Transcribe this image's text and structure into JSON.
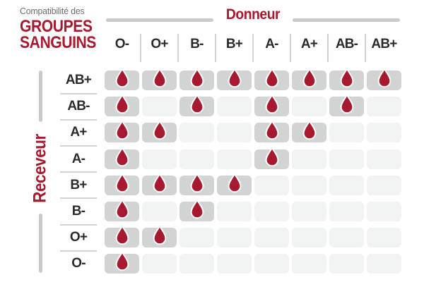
{
  "title": {
    "kicker": "Compatibilité des",
    "line1": "GROUPES",
    "line2": "SANGUINS"
  },
  "axes": {
    "donor_label": "Donneur",
    "receiver_label": "Receveur"
  },
  "colors": {
    "accent_red": "#a6192e",
    "drop_red": "#a6192e",
    "cell_filled": "#d2d4d4",
    "cell_empty": "#f2f3f3",
    "line_gray": "#c9cbcb",
    "header_text": "#2b2b2b",
    "subtitle_gray": "#6e6e6e"
  },
  "chart_data": {
    "type": "heatmap",
    "title": "Compatibilité des groupes sanguins",
    "x_axis_label": "Donneur",
    "y_axis_label": "Receveur",
    "columns": [
      "O-",
      "O+",
      "B-",
      "B+",
      "A-",
      "A+",
      "AB-",
      "AB+"
    ],
    "rows": [
      "AB+",
      "AB-",
      "A+",
      "A-",
      "B+",
      "B-",
      "O+",
      "O-"
    ],
    "matrix": [
      [
        1,
        1,
        1,
        1,
        1,
        1,
        1,
        1
      ],
      [
        1,
        0,
        1,
        0,
        1,
        0,
        1,
        0
      ],
      [
        1,
        1,
        0,
        0,
        1,
        1,
        0,
        0
      ],
      [
        1,
        0,
        0,
        0,
        1,
        0,
        0,
        0
      ],
      [
        1,
        1,
        1,
        1,
        0,
        0,
        0,
        0
      ],
      [
        1,
        0,
        1,
        0,
        0,
        0,
        0,
        0
      ],
      [
        1,
        1,
        0,
        0,
        0,
        0,
        0,
        0
      ],
      [
        1,
        0,
        0,
        0,
        0,
        0,
        0,
        0
      ]
    ],
    "marker": "blood-drop-icon",
    "marker_meaning": "compatible",
    "legend_position": "none",
    "grid": false
  }
}
